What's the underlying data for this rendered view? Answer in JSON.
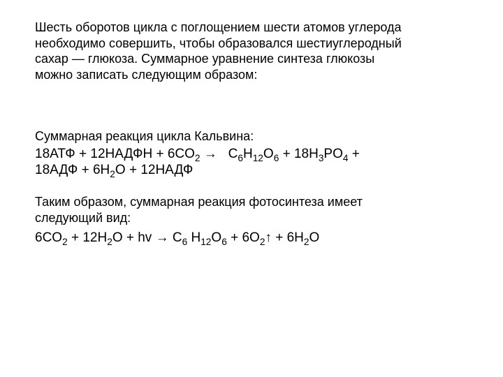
{
  "intro": {
    "line1": "Шесть оборотов цикла с поглощением шести атомов углерода",
    "line2": "необходимо совершить, чтобы образовался шестиуглеродный",
    "line3": "сахар — глюкоза. Суммарное уравнение синтеза глюкозы",
    "line4": "можно записать следующим образом:"
  },
  "calvin": {
    "title": "Суммарная реакция цикла Кальвина:",
    "eq_line1_html": "18АТФ + 12НАДФН + 6CO<sub>2</sub> →&nbsp;&nbsp;&nbsp;C<sub>6</sub>H<sub>12</sub>O<sub>6</sub> + 18H<sub>3</sub>PO<sub>4</sub> +",
    "eq_line2_html": "18АДФ + 6H<sub>2</sub>O + 12НАДФ"
  },
  "photo": {
    "intro1": "Таким образом, суммарная реакция фотосинтеза имеет",
    "intro2": "следующий вид:",
    "eq_html": "6CO<sub>2</sub> + 12H<sub>2</sub>O + hv → C<sub>6</sub> H<sub>12</sub>O<sub>6</sub> + 6O<sub>2</sub>↑ + 6H<sub>2</sub>O"
  },
  "style": {
    "font_size_pt": 18,
    "text_color": "#000000",
    "background_color": "#ffffff"
  }
}
